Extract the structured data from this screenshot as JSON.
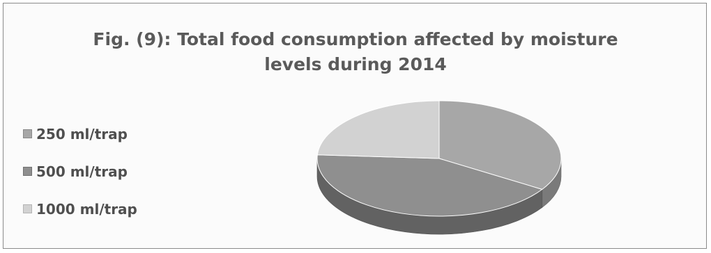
{
  "chart_data": {
    "type": "pie",
    "title_lines": [
      "Fig. (9): Total food consumption affected by moisture",
      "levels during  2014"
    ],
    "legend_position": "left",
    "three_d": true,
    "slices": [
      {
        "label": "250 ml/trap",
        "value": 34,
        "color": "#a7a7a7"
      },
      {
        "label": "500 ml/trap",
        "value": 42,
        "color": "#8f8f8f"
      },
      {
        "label": "1000 ml/trap",
        "value": 24,
        "color": "#d2d2d2"
      }
    ]
  }
}
